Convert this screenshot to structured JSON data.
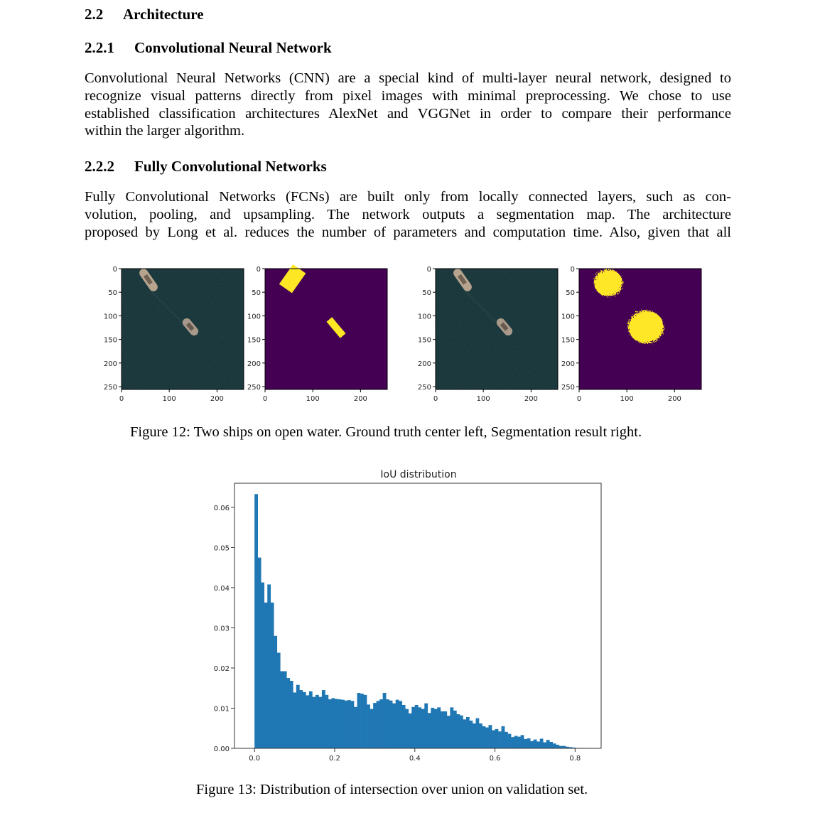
{
  "section": {
    "number": "2.2",
    "title": "Architecture"
  },
  "subsection1": {
    "number": "2.2.1",
    "title": "Convolutional Neural Network",
    "lines": [
      "Convolutional Neural Networks (CNN) are a special kind of multi-layer neural network, designed to",
      "recognize visual patterns directly from pixel images with minimal preprocessing. We chose to use",
      "established classification architectures AlexNet and VGGNet in order to compare their performance",
      "within the larger algorithm."
    ]
  },
  "subsection2": {
    "number": "2.2.2",
    "title": "Fully Convolutional Networks",
    "lines": [
      "Fully Convolutional Networks (FCNs) are built only from locally connected layers, such as con-",
      "volution, pooling, and upsampling. The network outputs a segmentation map. The architecture",
      "proposed by Long et al. reduces the number of parameters and computation time. Also, given that all"
    ]
  },
  "figure12": {
    "caption": "Figure 12: Two ships on open water. Ground truth center left, Segmentation result right.",
    "x_ticks": [
      "0",
      "100",
      "200"
    ],
    "y_ticks": [
      "0",
      "50",
      "100",
      "150",
      "200",
      "250"
    ],
    "panels": [
      {
        "kind": "satellite image"
      },
      {
        "kind": "ground truth mask"
      },
      {
        "kind": "satellite image"
      },
      {
        "kind": "segmentation result"
      }
    ],
    "colors": {
      "water": "#0f2a2e",
      "mask_background": "#440154",
      "mask_foreground": "#fde725"
    }
  },
  "figure13": {
    "caption": "Figure 13: Distribution of intersection over union on validation set."
  },
  "chart_data": {
    "type": "bar",
    "title": "IoU distribution",
    "xlabel": "",
    "ylabel": "",
    "xlim": [
      -0.05,
      0.865
    ],
    "ylim": [
      0,
      0.066
    ],
    "x_ticks": [
      0.0,
      0.2,
      0.4,
      0.6,
      0.8
    ],
    "x_tick_labels": [
      "0.0",
      "0.2",
      "0.4",
      "0.6",
      "0.8"
    ],
    "y_ticks": [
      0.0,
      0.01,
      0.02,
      0.03,
      0.04,
      0.05,
      0.06
    ],
    "y_tick_labels": [
      "0.00",
      "0.01",
      "0.02",
      "0.03",
      "0.04",
      "0.05",
      "0.06"
    ],
    "bin_start": 0.0,
    "bin_width": 0.008,
    "values": [
      0.0633,
      0.0475,
      0.0413,
      0.0363,
      0.0408,
      0.0363,
      0.028,
      0.0238,
      0.0192,
      0.0192,
      0.0175,
      0.0168,
      0.0139,
      0.0158,
      0.0145,
      0.014,
      0.0132,
      0.0142,
      0.0128,
      0.0133,
      0.0128,
      0.0145,
      0.0133,
      0.0122,
      0.0125,
      0.0123,
      0.0122,
      0.0121,
      0.0119,
      0.012,
      0.0118,
      0.0103,
      0.0138,
      0.0136,
      0.0133,
      0.0109,
      0.0098,
      0.0113,
      0.0118,
      0.0122,
      0.0138,
      0.0122,
      0.0119,
      0.0112,
      0.0121,
      0.0118,
      0.0108,
      0.0098,
      0.0087,
      0.0103,
      0.0108,
      0.0102,
      0.0098,
      0.0112,
      0.0088,
      0.0101,
      0.0098,
      0.0102,
      0.0092,
      0.0092,
      0.0081,
      0.0102,
      0.0094,
      0.0085,
      0.0082,
      0.0072,
      0.0078,
      0.0069,
      0.0062,
      0.0075,
      0.0062,
      0.0055,
      0.0052,
      0.0058,
      0.0045,
      0.0048,
      0.0042,
      0.0055,
      0.0041,
      0.0036,
      0.0028,
      0.0031,
      0.0029,
      0.0033,
      0.0023,
      0.0025,
      0.0018,
      0.0022,
      0.0017,
      0.0024,
      0.0015,
      0.0021,
      0.0016,
      0.0012,
      0.0009,
      0.0006,
      0.0006,
      0.0004,
      0.0003,
      0.0002,
      0.0001,
      0.0001,
      0.0001
    ]
  }
}
